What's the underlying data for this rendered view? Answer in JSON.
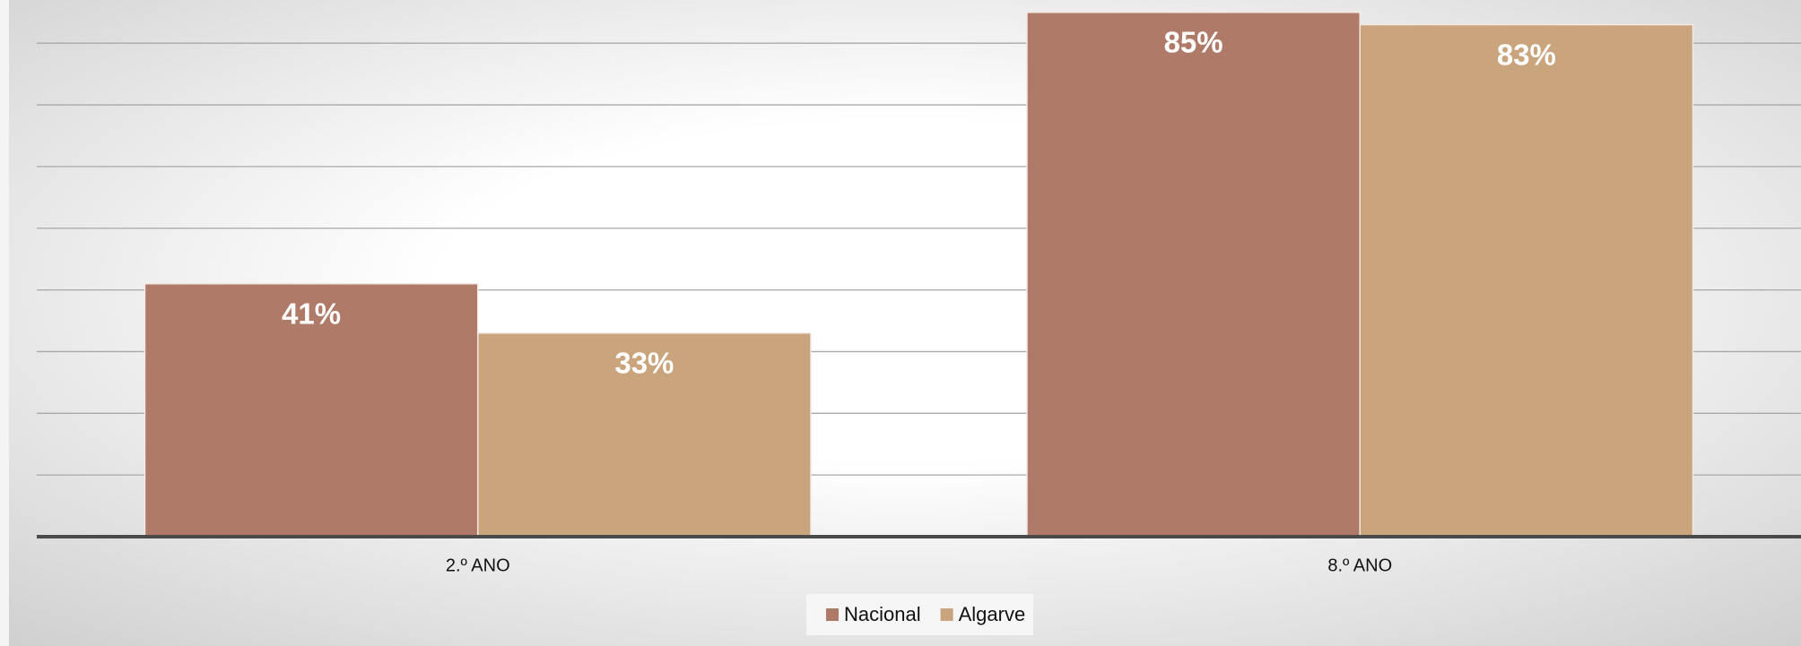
{
  "chart_data": {
    "type": "bar",
    "categories": [
      "2.º ANO",
      "8.º ANO"
    ],
    "series": [
      {
        "name": "Nacional",
        "color": "#b07a68",
        "values": [
          41,
          85
        ],
        "value_labels": [
          "41%",
          "85%"
        ]
      },
      {
        "name": "Algarve",
        "color": "#c9a47c",
        "values": [
          33,
          83
        ],
        "value_labels": [
          "33%",
          "83%"
        ]
      }
    ],
    "ylim": [
      0,
      87
    ],
    "yticks": [
      0,
      10,
      20,
      30,
      40,
      50,
      60,
      70,
      80
    ],
    "grid": true,
    "legend": "bottom"
  }
}
